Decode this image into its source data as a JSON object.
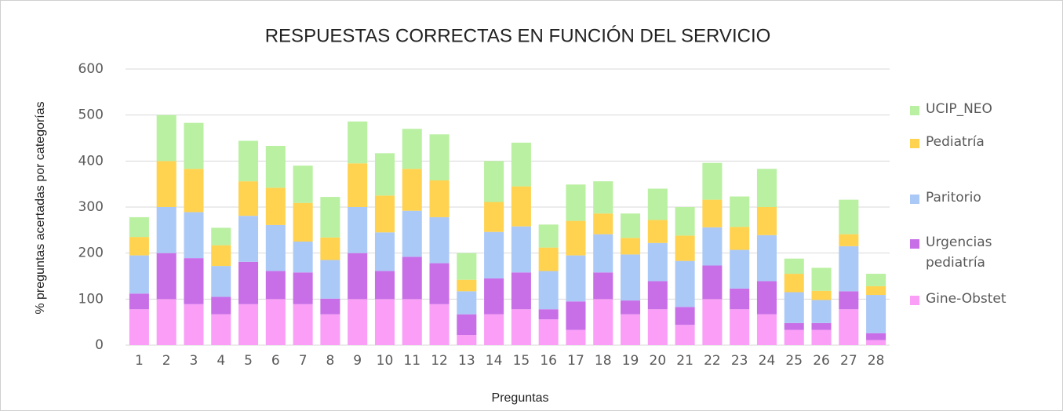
{
  "chart_data": {
    "type": "stacked_bar",
    "title": "RESPUESTAS CORRECTAS EN FUNCIÓN DEL SERVICIO",
    "x_label": "Preguntas",
    "y_label": "% preguntas acertadas por categorías",
    "categories": [
      "1",
      "2",
      "3",
      "4",
      "5",
      "6",
      "7",
      "8",
      "9",
      "10",
      "11",
      "12",
      "13",
      "14",
      "15",
      "16",
      "17",
      "18",
      "19",
      "20",
      "21",
      "22",
      "23",
      "24",
      "25",
      "26",
      "27",
      "28"
    ],
    "series": [
      {
        "name": "Gine-Obstet",
        "color": "#fa9ef7",
        "values": [
          78,
          100,
          89,
          67,
          89,
          100,
          89,
          67,
          100,
          100,
          100,
          89,
          22,
          67,
          78,
          56,
          33,
          100,
          67,
          78,
          44,
          100,
          78,
          67,
          33,
          33,
          78,
          11
        ]
      },
      {
        "name": "Urgencias pediatría",
        "color": "#c86fe8",
        "values": [
          34,
          100,
          100,
          38,
          92,
          61,
          69,
          34,
          100,
          61,
          92,
          89,
          45,
          78,
          80,
          22,
          62,
          58,
          30,
          61,
          39,
          73,
          45,
          72,
          15,
          15,
          39,
          15
        ]
      },
      {
        "name": "Paritorio",
        "color": "#abc9f7",
        "values": [
          83,
          100,
          100,
          67,
          100,
          100,
          67,
          84,
          100,
          84,
          100,
          100,
          50,
          101,
          100,
          83,
          100,
          83,
          100,
          83,
          100,
          83,
          84,
          100,
          67,
          50,
          98,
          83
        ]
      },
      {
        "name": "Pediatría",
        "color": "#ffd24f",
        "values": [
          40,
          100,
          94,
          45,
          75,
          81,
          84,
          49,
          95,
          80,
          91,
          80,
          25,
          65,
          87,
          51,
          75,
          45,
          36,
          50,
          55,
          60,
          50,
          61,
          40,
          20,
          26,
          19
        ]
      },
      {
        "name": "UCIP_NEO",
        "color": "#b9f0a1",
        "values": [
          43,
          100,
          100,
          38,
          88,
          91,
          81,
          88,
          91,
          92,
          87,
          100,
          58,
          89,
          95,
          50,
          79,
          70,
          53,
          68,
          62,
          80,
          66,
          83,
          33,
          50,
          75,
          27
        ]
      }
    ],
    "ylim": [
      0,
      600
    ],
    "yticks": [
      0,
      100,
      200,
      300,
      400,
      500,
      600
    ],
    "grid": true,
    "legend": "right"
  }
}
